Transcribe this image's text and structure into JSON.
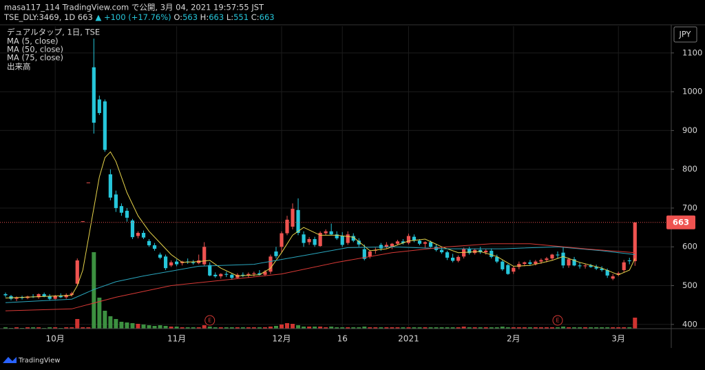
{
  "chart_data": {
    "type": "candlestick",
    "header": {
      "title": "masa117_114 TradingView.com で公開, 3月 04, 2021 19:57:55 JST",
      "symbol": "TSE_DLY:3469, 1D",
      "last": "663",
      "change": "▲ +100 (+17.76%)",
      "o_label": "O:",
      "o": "563",
      "h_label": "H:",
      "h": "663",
      "l_label": "L:",
      "l": "551",
      "c_label": "C:",
      "c": "663"
    },
    "legend_title": "デュアルタップ, 1日, TSE",
    "volume_name": "出来高",
    "currency": "JPY",
    "watermark": "TradingView",
    "categories": [
      null,
      null,
      null,
      null,
      null,
      null,
      null,
      null,
      null,
      "10月",
      null,
      null,
      null,
      null,
      null,
      null,
      null,
      null,
      null,
      null,
      null,
      null,
      null,
      null,
      null,
      null,
      null,
      null,
      null,
      null,
      null,
      "11月",
      null,
      null,
      null,
      null,
      null,
      null,
      null,
      null,
      null,
      null,
      null,
      null,
      null,
      null,
      null,
      null,
      null,
      null,
      "12月",
      null,
      null,
      null,
      null,
      null,
      null,
      null,
      null,
      null,
      null,
      "16",
      null,
      null,
      null,
      null,
      null,
      null,
      null,
      null,
      null,
      null,
      null,
      "2021",
      null,
      null,
      null,
      null,
      null,
      null,
      null,
      null,
      null,
      null,
      null,
      null,
      null,
      null,
      null,
      null,
      null,
      null,
      "2月",
      null,
      null,
      null,
      null,
      null,
      null,
      null,
      null,
      null,
      null,
      null,
      null,
      null,
      null,
      null,
      null,
      null,
      null,
      "3月",
      null,
      null,
      null
    ],
    "open": [
      478,
      473,
      466,
      470,
      468,
      472,
      470,
      478,
      472,
      466,
      474,
      470,
      476,
      505,
      666,
      766,
      1063,
      980,
      975,
      787,
      735,
      705,
      693,
      668,
      628,
      636,
      615,
      604,
      580,
      575,
      552,
      562,
      558,
      562,
      560,
      558,
      555,
      553,
      528,
      524,
      530,
      528,
      520,
      528,
      526,
      530,
      532,
      528,
      536,
      588,
      600,
      635,
      652,
      695,
      632,
      612,
      620,
      602,
      635,
      640,
      632,
      628,
      610,
      628,
      616,
      594,
      575,
      590,
      605,
      600,
      600,
      608,
      614,
      610,
      626,
      616,
      608,
      612,
      600,
      592,
      586,
      572,
      564,
      575,
      594,
      584,
      592,
      586,
      590,
      574,
      562,
      553,
      536,
      548,
      556,
      560,
      556,
      562,
      566,
      570,
      580,
      585,
      552,
      568,
      552,
      550,
      552,
      548,
      544,
      540,
      518,
      528,
      540,
      565,
      563
    ],
    "high": [
      482,
      476,
      472,
      474,
      474,
      478,
      480,
      482,
      478,
      476,
      480,
      480,
      484,
      570,
      666,
      766,
      1137,
      990,
      980,
      800,
      745,
      712,
      700,
      672,
      640,
      642,
      620,
      610,
      585,
      580,
      565,
      568,
      564,
      570,
      566,
      580,
      612,
      560,
      534,
      532,
      536,
      532,
      532,
      534,
      534,
      536,
      540,
      540,
      580,
      600,
      640,
      680,
      712,
      725,
      640,
      625,
      626,
      640,
      645,
      660,
      640,
      638,
      640,
      635,
      622,
      606,
      592,
      598,
      610,
      612,
      610,
      618,
      620,
      634,
      632,
      620,
      614,
      616,
      606,
      598,
      590,
      582,
      578,
      598,
      600,
      596,
      600,
      594,
      596,
      580,
      566,
      556,
      550,
      562,
      562,
      566,
      566,
      570,
      574,
      582,
      588,
      598,
      572,
      574,
      560,
      556,
      556,
      554,
      550,
      544,
      530,
      536,
      566,
      572,
      663
    ],
    "low": [
      470,
      462,
      460,
      464,
      465,
      468,
      466,
      470,
      462,
      464,
      468,
      466,
      472,
      500,
      666,
      766,
      892,
      940,
      845,
      720,
      690,
      680,
      665,
      620,
      622,
      620,
      600,
      590,
      568,
      540,
      548,
      550,
      552,
      556,
      554,
      555,
      550,
      524,
      520,
      518,
      522,
      515,
      518,
      522,
      520,
      524,
      526,
      524,
      530,
      570,
      585,
      630,
      645,
      630,
      600,
      605,
      600,
      600,
      630,
      630,
      618,
      600,
      605,
      612,
      600,
      565,
      570,
      582,
      590,
      596,
      594,
      604,
      606,
      606,
      612,
      604,
      598,
      598,
      588,
      582,
      566,
      560,
      560,
      570,
      580,
      580,
      582,
      580,
      570,
      558,
      538,
      528,
      530,
      542,
      550,
      552,
      552,
      556,
      560,
      566,
      570,
      545,
      546,
      550,
      544,
      544,
      546,
      540,
      536,
      520,
      514,
      524,
      534,
      555,
      551
    ],
    "close": [
      475,
      466,
      470,
      468,
      472,
      470,
      478,
      472,
      466,
      474,
      470,
      476,
      480,
      565,
      666,
      766,
      920,
      945,
      850,
      727,
      700,
      688,
      675,
      625,
      636,
      624,
      604,
      595,
      572,
      545,
      560,
      555,
      562,
      560,
      558,
      565,
      600,
      526,
      524,
      530,
      528,
      520,
      528,
      526,
      530,
      532,
      528,
      536,
      575,
      576,
      635,
      670,
      698,
      636,
      610,
      620,
      605,
      636,
      640,
      632,
      622,
      605,
      632,
      616,
      606,
      569,
      588,
      592,
      596,
      605,
      608,
      614,
      610,
      628,
      616,
      608,
      612,
      600,
      592,
      586,
      572,
      564,
      574,
      594,
      584,
      592,
      586,
      590,
      574,
      562,
      542,
      530,
      546,
      556,
      560,
      556,
      562,
      566,
      570,
      580,
      578,
      552,
      568,
      552,
      550,
      552,
      548,
      544,
      540,
      526,
      524,
      532,
      560,
      563,
      663
    ],
    "volume": [
      2,
      1,
      2,
      1,
      2,
      2,
      2,
      1,
      2,
      2,
      1,
      2,
      2,
      14,
      2,
      2,
      111,
      45,
      26,
      18,
      14,
      10,
      9,
      8,
      7,
      6,
      5,
      4,
      5,
      4,
      3,
      3,
      2,
      2,
      2,
      2,
      5,
      3,
      2,
      2,
      2,
      2,
      2,
      2,
      2,
      2,
      2,
      2,
      3,
      4,
      6,
      8,
      7,
      5,
      3,
      3,
      3,
      3,
      2,
      3,
      2,
      2,
      2,
      2,
      2,
      3,
      2,
      2,
      2,
      2,
      2,
      2,
      2,
      2,
      2,
      2,
      2,
      2,
      2,
      2,
      2,
      2,
      2,
      3,
      2,
      2,
      2,
      2,
      2,
      2,
      3,
      2,
      2,
      2,
      2,
      2,
      2,
      2,
      2,
      2,
      2,
      3,
      2,
      2,
      2,
      2,
      2,
      2,
      2,
      2,
      2,
      2,
      2,
      2,
      16
    ],
    "up_color": "#ef5350",
    "down_color": "#26c6da",
    "volume_up_color": "#e53935",
    "volume_down_color": "#43a047",
    "ylim": [
      389,
      1169
    ],
    "yticks": [
      400,
      500,
      600,
      700,
      800,
      900,
      1000,
      1100
    ],
    "volume_lim": [
      0,
      130
    ],
    "series": [
      {
        "name": "MA (5, close)",
        "color": "#e6d34a",
        "x": [
          0,
          12,
          13,
          14,
          15,
          17,
          18,
          19,
          20,
          21,
          22,
          24,
          26,
          28,
          30,
          32,
          35,
          37,
          39,
          42,
          46,
          48,
          50,
          52,
          54,
          57,
          60,
          63,
          66,
          69,
          73,
          76,
          79,
          82,
          86,
          89,
          92,
          95,
          99,
          101,
          104,
          108,
          111,
          113,
          114
        ],
        "values": [
          468,
          475,
          500,
          540,
          620,
          780,
          830,
          845,
          820,
          780,
          740,
          680,
          640,
          610,
          580,
          560,
          562,
          565,
          545,
          525,
          528,
          545,
          585,
          630,
          650,
          630,
          630,
          625,
          590,
          595,
          615,
          620,
          600,
          585,
          588,
          575,
          550,
          552,
          565,
          575,
          560,
          545,
          528,
          540,
          570
        ]
      },
      {
        "name": "MA (50, close)",
        "color": "#2aa7bf",
        "x": [
          0,
          12,
          16,
          20,
          25,
          35,
          45,
          55,
          62,
          70,
          80,
          90,
          100,
          108,
          114
        ],
        "values": [
          456,
          465,
          490,
          510,
          525,
          550,
          555,
          580,
          598,
          600,
          595,
          595,
          600,
          590,
          580
        ]
      },
      {
        "name": "MA (75, close)",
        "color": "#d93a36",
        "x": [
          0,
          12,
          20,
          30,
          40,
          50,
          60,
          70,
          80,
          88,
          95,
          105,
          114
        ],
        "values": [
          435,
          440,
          470,
          500,
          515,
          530,
          560,
          585,
          600,
          608,
          608,
          595,
          585
        ]
      }
    ],
    "events": [
      {
        "x": 37,
        "label": "E"
      },
      {
        "x": 100,
        "label": "E"
      }
    ]
  }
}
